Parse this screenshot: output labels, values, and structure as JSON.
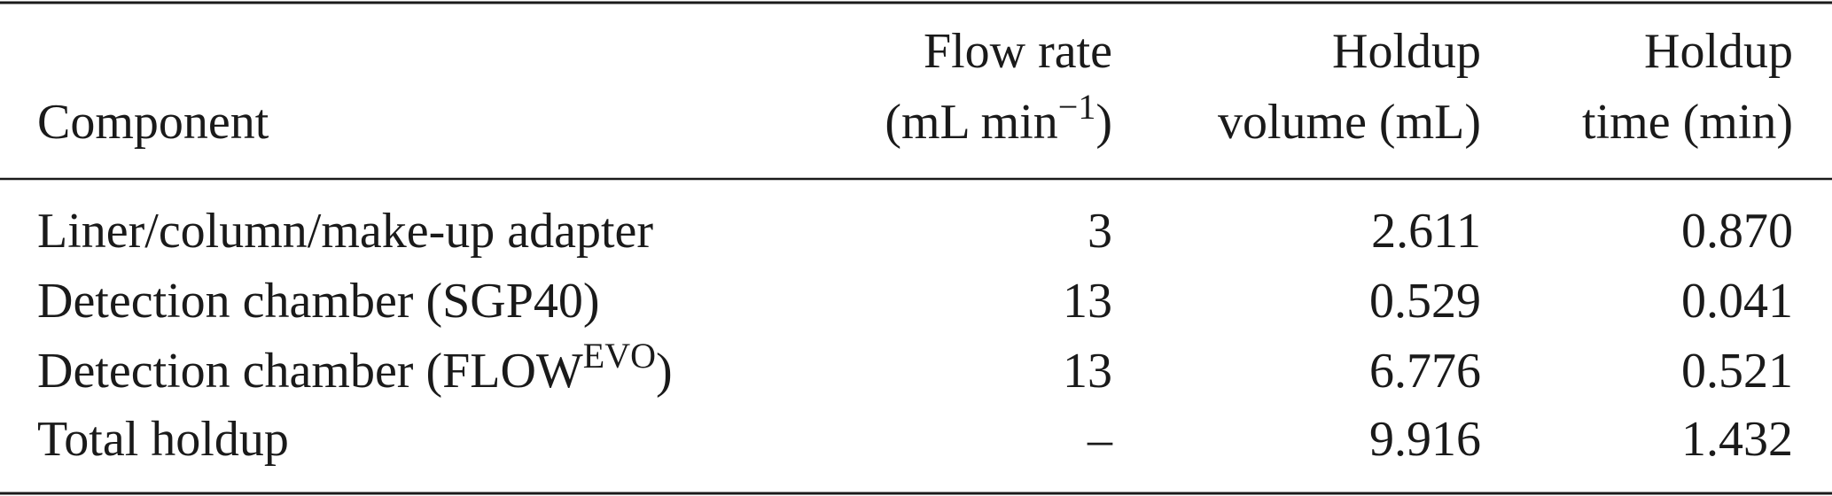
{
  "table": {
    "headers": [
      [
        "Component"
      ],
      [
        "Flow rate",
        "(mL min",
        "−1",
        ")"
      ],
      [
        "Holdup",
        "volume (mL)"
      ],
      [
        "Holdup",
        "time (min)"
      ]
    ],
    "rows": [
      [
        [
          "Liner/column/make-up adapter"
        ],
        "3",
        "2.611",
        "0.870"
      ],
      [
        [
          "Detection chamber (SGP40)"
        ],
        "13",
        "0.529",
        "0.041"
      ],
      [
        [
          "Detection chamber (FLOW",
          "EVO",
          ")"
        ],
        "13",
        "6.776",
        "0.521"
      ],
      [
        [
          "Total holdup"
        ],
        "–",
        "9.916",
        "1.432"
      ]
    ]
  }
}
